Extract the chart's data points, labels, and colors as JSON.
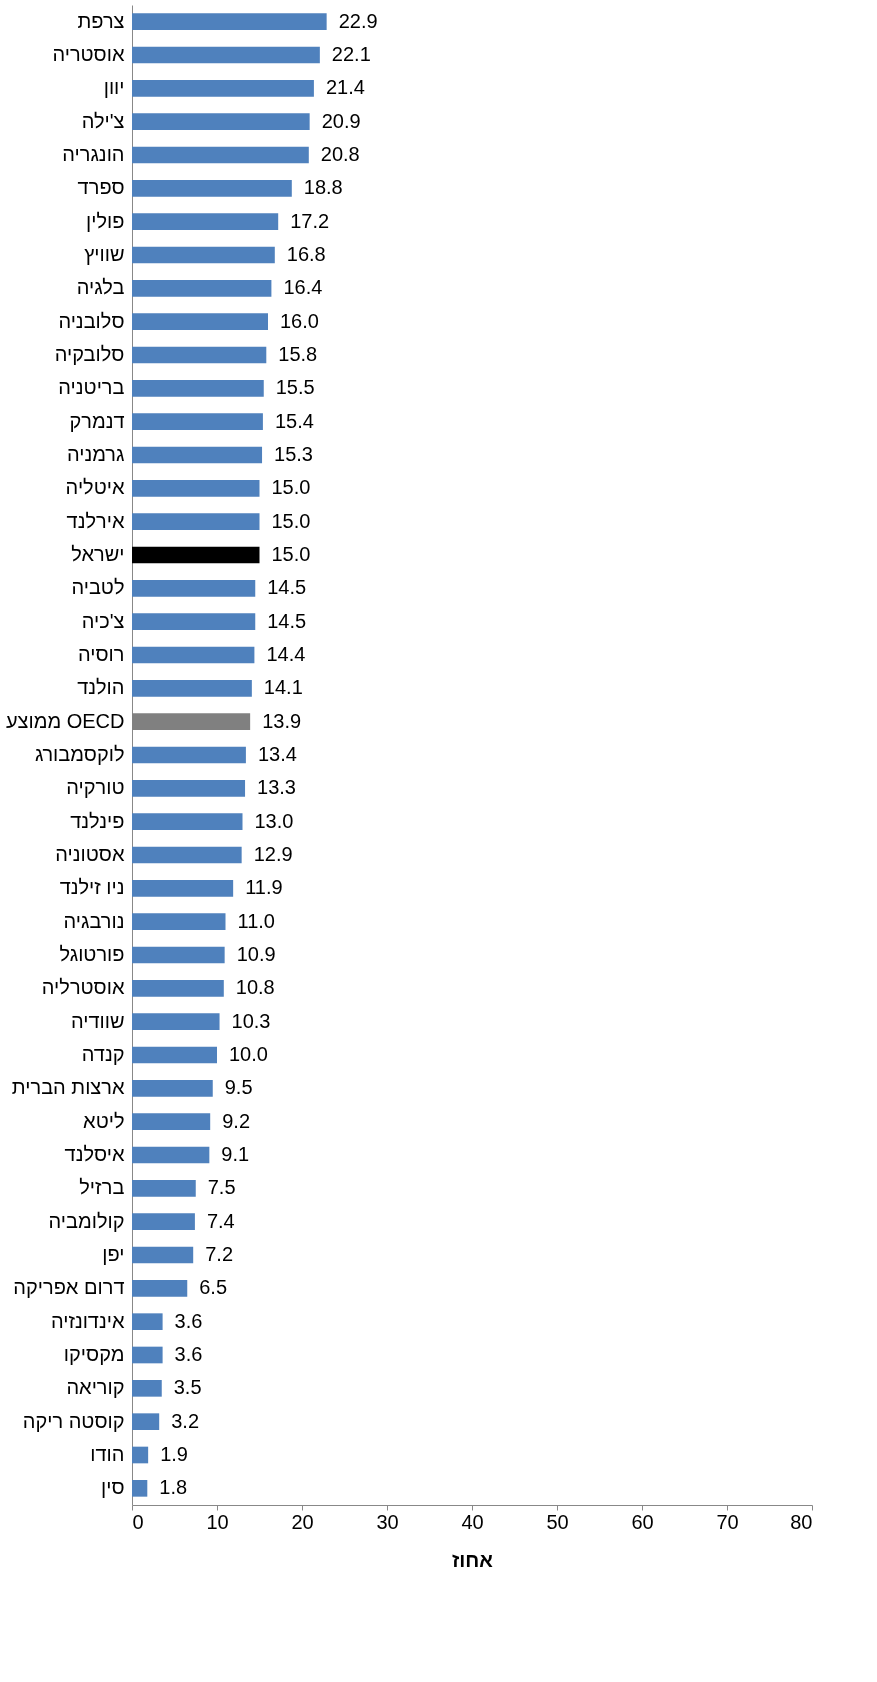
{
  "chart_data": {
    "type": "bar",
    "orientation": "horizontal",
    "xlabel": "אחוז",
    "categories": [
      "צרפת",
      "אוסטריה",
      "יוון",
      "צ'ילה",
      "הונגריה",
      "ספרד",
      "פולין",
      "שוויץ",
      "בלגיה",
      "סלובניה",
      "סלובקיה",
      "בריטניה",
      "דנמרק",
      "גרמניה",
      "איטליה",
      "אירלנד",
      "ישראל",
      "לטביה",
      "צ'כיה",
      "רוסיה",
      "הולנד",
      "ממוצע OECD",
      "לוקסמבורג",
      "טורקיה",
      "פינלנד",
      "אסטוניה",
      "ניו זילנד",
      "נורבגיה",
      "פורטוגל",
      "אוסטרליה",
      "שוודיה",
      "קנדה",
      "ארצות הברית",
      "ליטא",
      "איסלנד",
      "ברזיל",
      "קולומביה",
      "יפן",
      "דרום אפריקה",
      "אינדונזיה",
      "מקסיקו",
      "קוריאה",
      "קוסטה ריקה",
      "הודו",
      "סין"
    ],
    "values": [
      22.9,
      22.1,
      21.4,
      20.9,
      20.8,
      18.8,
      17.2,
      16.8,
      16.4,
      16.0,
      15.8,
      15.5,
      15.4,
      15.3,
      15.0,
      15.0,
      15.0,
      14.5,
      14.5,
      14.4,
      14.1,
      13.9,
      13.4,
      13.3,
      13.0,
      12.9,
      11.9,
      11.0,
      10.9,
      10.8,
      10.3,
      10.0,
      9.5,
      9.2,
      9.1,
      7.5,
      7.4,
      7.2,
      6.5,
      3.6,
      3.6,
      3.5,
      3.2,
      1.9,
      1.8
    ],
    "colors": [
      "#4f81bd",
      "#4f81bd",
      "#4f81bd",
      "#4f81bd",
      "#4f81bd",
      "#4f81bd",
      "#4f81bd",
      "#4f81bd",
      "#4f81bd",
      "#4f81bd",
      "#4f81bd",
      "#4f81bd",
      "#4f81bd",
      "#4f81bd",
      "#4f81bd",
      "#4f81bd",
      "#000000",
      "#4f81bd",
      "#4f81bd",
      "#4f81bd",
      "#4f81bd",
      "#808080",
      "#4f81bd",
      "#4f81bd",
      "#4f81bd",
      "#4f81bd",
      "#4f81bd",
      "#4f81bd",
      "#4f81bd",
      "#4f81bd",
      "#4f81bd",
      "#4f81bd",
      "#4f81bd",
      "#4f81bd",
      "#4f81bd",
      "#4f81bd",
      "#4f81bd",
      "#4f81bd",
      "#4f81bd",
      "#4f81bd",
      "#4f81bd",
      "#4f81bd",
      "#4f81bd",
      "#4f81bd",
      "#4f81bd"
    ],
    "xlim": [
      0,
      80
    ],
    "xticks": [
      0,
      10,
      20,
      30,
      40,
      50,
      60,
      70,
      80
    ],
    "value_labels": [
      "22.9",
      "22.1",
      "21.4",
      "20.9",
      "20.8",
      "18.8",
      "17.2",
      "16.8",
      "16.4",
      "16.0",
      "15.8",
      "15.5",
      "15.4",
      "15.3",
      "15.0",
      "15.0",
      "15.0",
      "14.5",
      "14.5",
      "14.4",
      "14.1",
      "13.9",
      "13.4",
      "13.3",
      "13.0",
      "12.9",
      "11.9",
      "11.0",
      "10.9",
      "10.8",
      "10.3",
      "10.0",
      "9.5",
      "9.2",
      "9.1",
      "7.5",
      "7.4",
      "7.2",
      "6.5",
      "3.6",
      "3.6",
      "3.5",
      "3.2",
      "1.9",
      "1.8"
    ],
    "grid": false
  }
}
